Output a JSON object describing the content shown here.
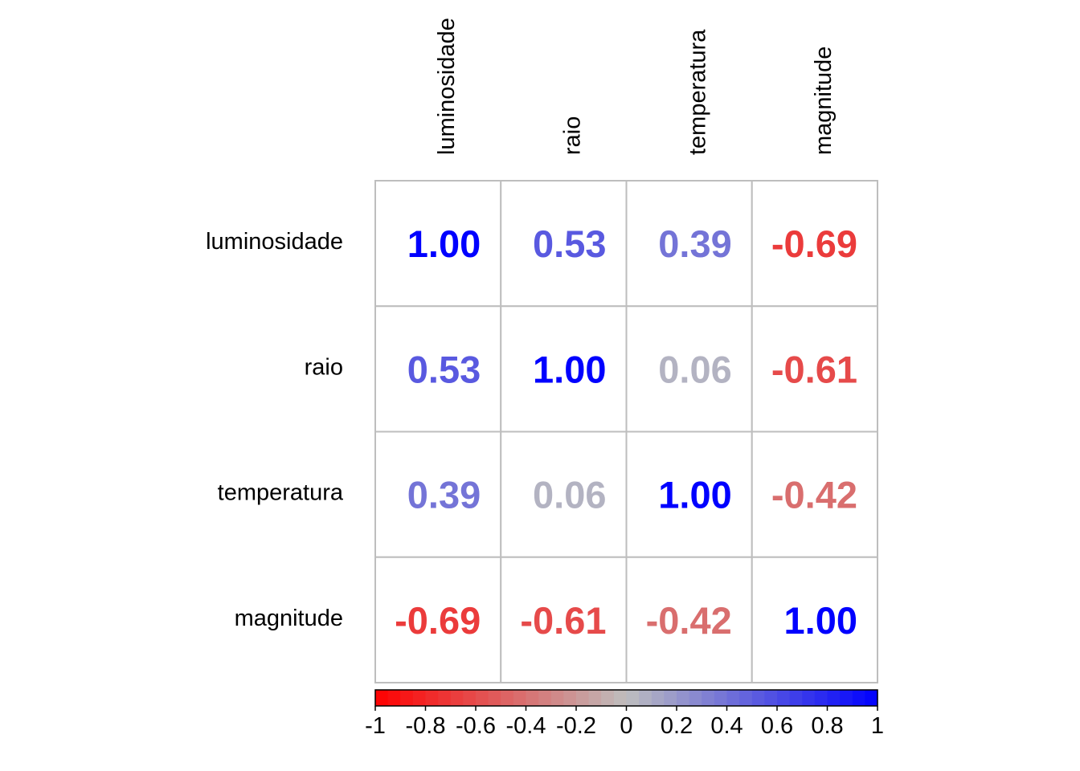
{
  "chart_data": {
    "type": "heatmap",
    "variables": [
      "luminosidade",
      "raio",
      "temperatura",
      "magnitude"
    ],
    "matrix": [
      [
        1.0,
        0.53,
        0.39,
        -0.69
      ],
      [
        0.53,
        1.0,
        0.06,
        -0.61
      ],
      [
        0.39,
        0.06,
        1.0,
        -0.42
      ],
      [
        -0.69,
        -0.61,
        -0.42,
        1.0
      ]
    ],
    "cell_labels": [
      [
        "1.00",
        "0.53",
        "0.39",
        "-0.69"
      ],
      [
        "0.53",
        "1.00",
        "0.06",
        "-0.61"
      ],
      [
        "0.39",
        "0.06",
        "1.00",
        "-0.42"
      ],
      [
        "-0.69",
        "-0.61",
        "-0.42",
        "1.00"
      ]
    ],
    "colorbar": {
      "range": [
        -1,
        1
      ],
      "ticks": [
        "-1",
        "-0.8",
        "-0.6",
        "-0.4",
        "-0.2",
        "0",
        "0.2",
        "0.4",
        "0.6",
        "0.8",
        "1"
      ]
    },
    "colors": {
      "negative": "#ff0000",
      "mid": "#bebebe",
      "positive": "#0000ff",
      "grid": "#bebebe"
    },
    "grid": true,
    "legend_position": "bottom"
  }
}
